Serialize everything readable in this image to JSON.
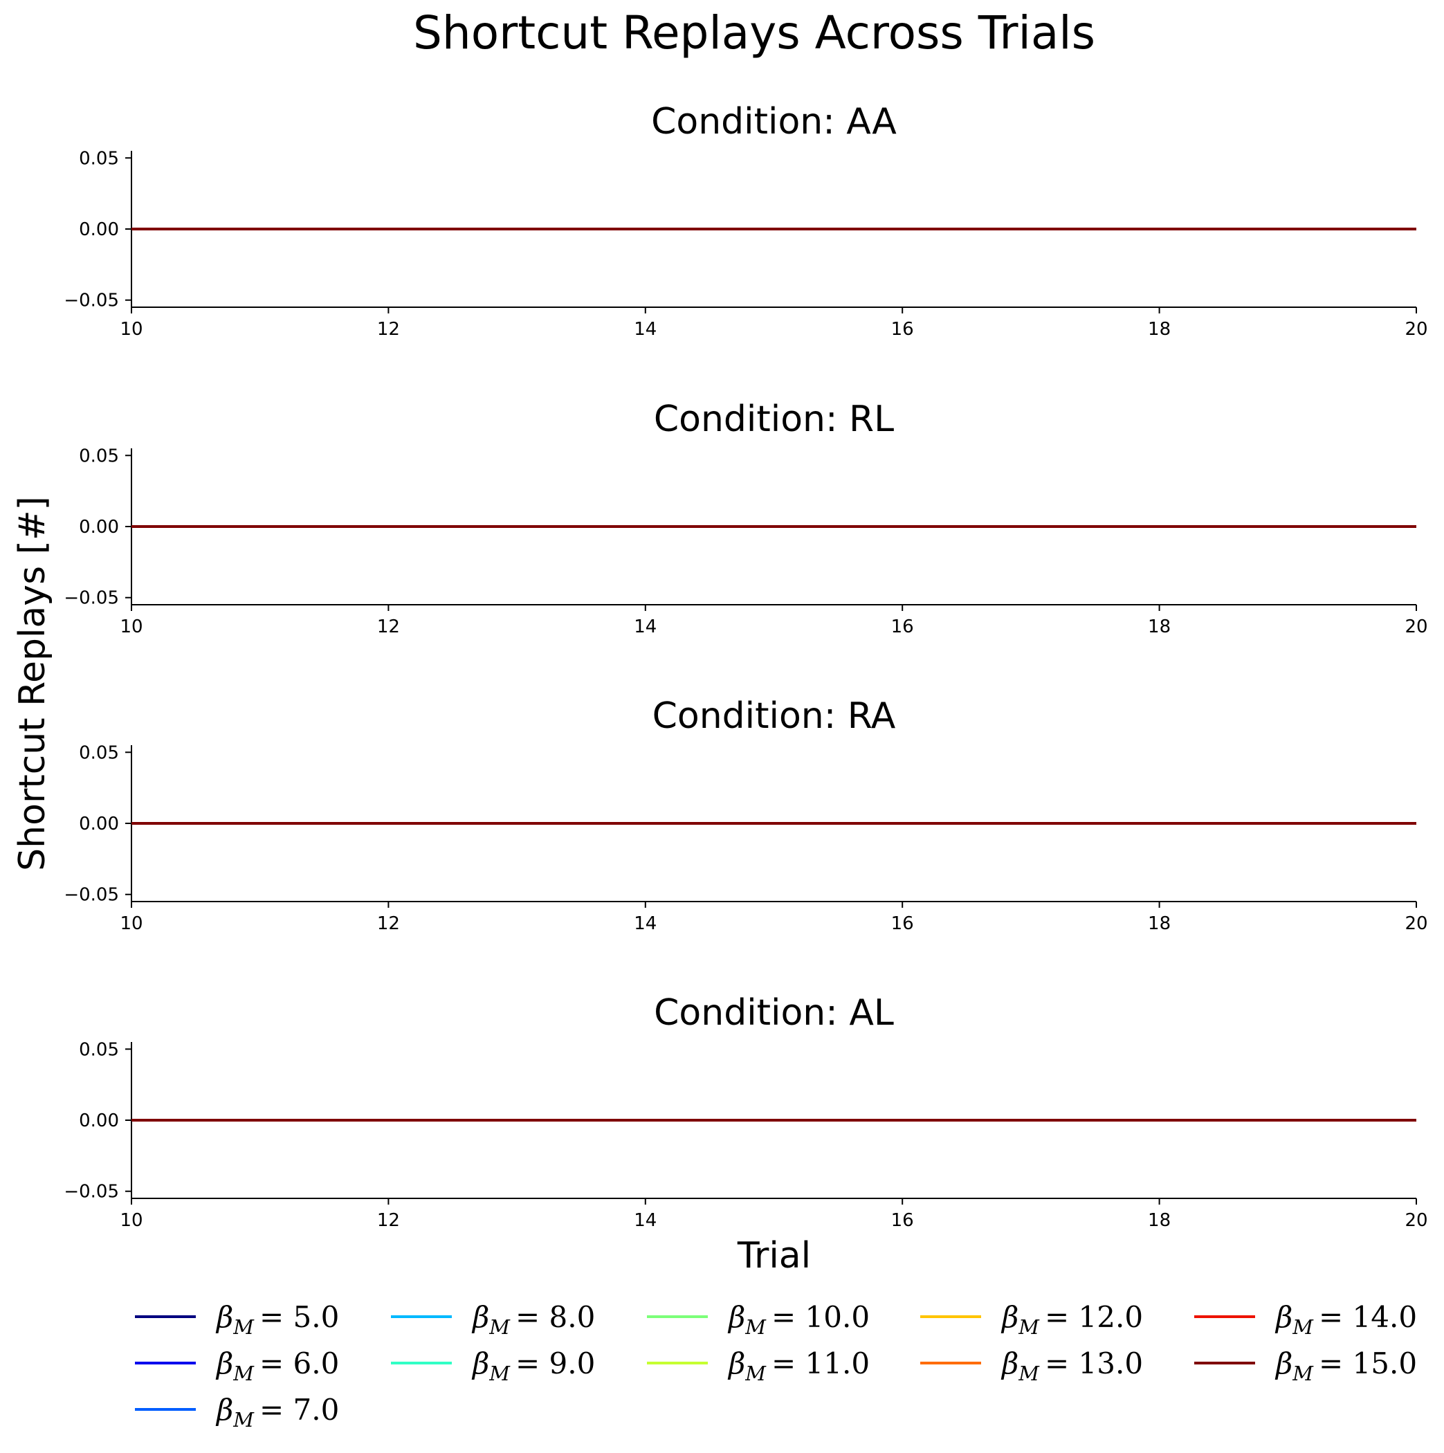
{
  "chart_data": {
    "type": "line",
    "title": "Shortcut Replays Across Trials",
    "xlabel": "Trial",
    "ylabel": "Shortcut Replays [#]",
    "xlim": [
      10,
      20
    ],
    "ylim": [
      -0.055,
      0.055
    ],
    "x_ticks": [
      10,
      12,
      14,
      16,
      18,
      20
    ],
    "y_ticks": [
      0.05,
      0.0,
      -0.05
    ],
    "y_tick_labels": [
      "0.05",
      "0.00",
      "−0.05"
    ],
    "grid": false,
    "legend_position": "bottom",
    "legend_columns": 5,
    "legend_symbol": "β",
    "legend_subscript": "M",
    "series": [
      {
        "value": "5.0",
        "color": "#00007f"
      },
      {
        "value": "6.0",
        "color": "#0000ed"
      },
      {
        "value": "7.0",
        "color": "#005dff"
      },
      {
        "value": "8.0",
        "color": "#00b9ff"
      },
      {
        "value": "9.0",
        "color": "#31ffc6"
      },
      {
        "value": "10.0",
        "color": "#7cff79"
      },
      {
        "value": "11.0",
        "color": "#c6ff31"
      },
      {
        "value": "12.0",
        "color": "#ffc400"
      },
      {
        "value": "13.0",
        "color": "#ff6c00"
      },
      {
        "value": "14.0",
        "color": "#ed1200"
      },
      {
        "value": "15.0",
        "color": "#7f0000"
      }
    ],
    "panels": [
      {
        "title": "Condition: AA",
        "x": [
          10,
          11,
          12,
          13,
          14,
          15,
          16,
          17,
          18,
          19,
          20
        ],
        "y": [
          0,
          0,
          0,
          0,
          0,
          0,
          0,
          0,
          0,
          0,
          0
        ]
      },
      {
        "title": "Condition: RL",
        "x": [
          10,
          11,
          12,
          13,
          14,
          15,
          16,
          17,
          18,
          19,
          20
        ],
        "y": [
          0,
          0,
          0,
          0,
          0,
          0,
          0,
          0,
          0,
          0,
          0
        ]
      },
      {
        "title": "Condition: RA",
        "x": [
          10,
          11,
          12,
          13,
          14,
          15,
          16,
          17,
          18,
          19,
          20
        ],
        "y": [
          0,
          0,
          0,
          0,
          0,
          0,
          0,
          0,
          0,
          0,
          0
        ]
      },
      {
        "title": "Condition: AL",
        "x": [
          10,
          11,
          12,
          13,
          14,
          15,
          16,
          17,
          18,
          19,
          20
        ],
        "y": [
          0,
          0,
          0,
          0,
          0,
          0,
          0,
          0,
          0,
          0,
          0
        ]
      }
    ]
  }
}
